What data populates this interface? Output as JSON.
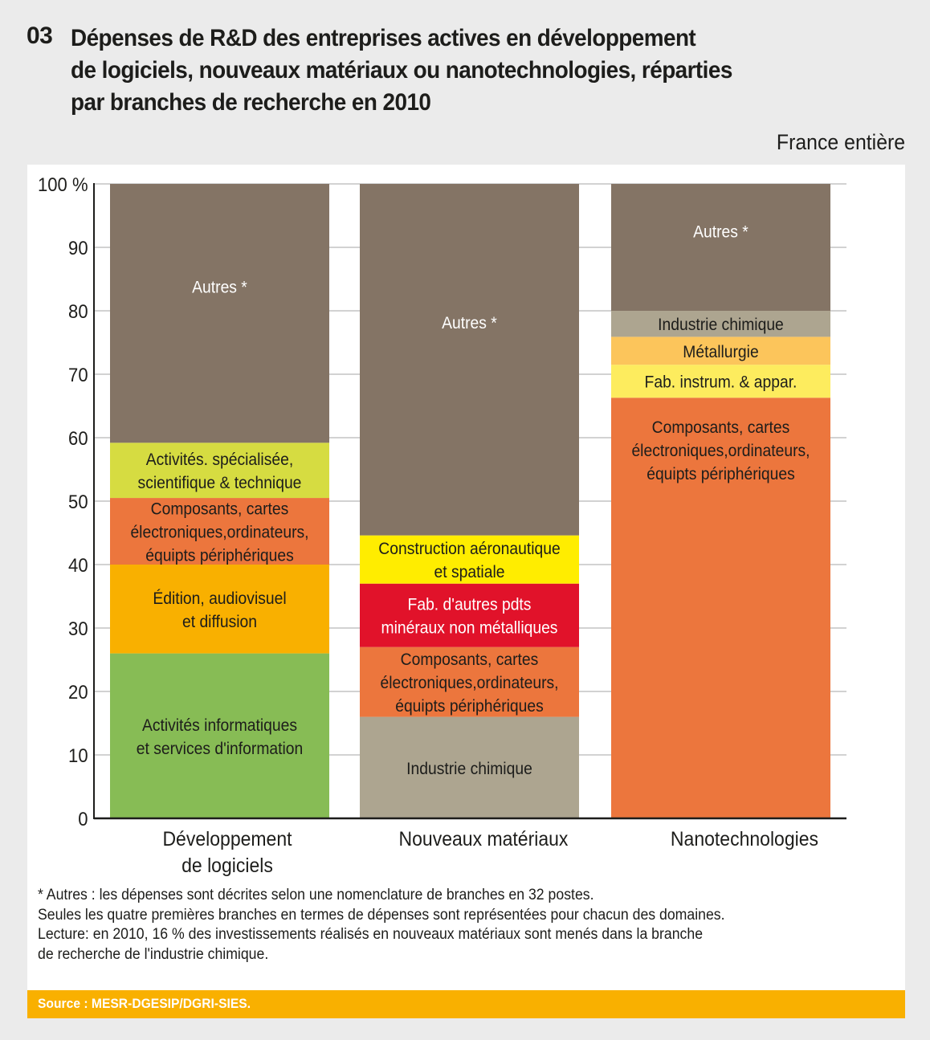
{
  "header": {
    "number": "03",
    "title_lines": [
      "Dépenses de R&D des entreprises actives en développement",
      "de logiciels, nouveaux matériaux ou nanotechnologies, réparties",
      "par branches de recherche en 2010"
    ],
    "scope": "France entière"
  },
  "chart_data": {
    "type": "bar",
    "stacked": true,
    "title": "Dépenses de R&D des entreprises actives en développement de logiciels, nouveaux matériaux ou nanotechnologies, réparties par branches de recherche en 2010",
    "ylabel": "%",
    "ylim": [
      0,
      100
    ],
    "y_ticks": [
      "0",
      "10",
      "20",
      "30",
      "40",
      "50",
      "60",
      "70",
      "80",
      "90",
      "100 %"
    ],
    "grid": true,
    "categories": [
      {
        "name": "Développement de logiciels",
        "label_lines": [
          "Développement",
          "de logiciels"
        ]
      },
      {
        "name": "Nouveaux matériaux",
        "label_lines": [
          "Nouveaux matériaux"
        ]
      },
      {
        "name": "Nanotechnologies",
        "label_lines": [
          "Nanotechnologies"
        ]
      }
    ],
    "stacks": [
      {
        "category": "Développement de logiciels",
        "segments": [
          {
            "name": "Activités informatiques et services d'information",
            "label_lines": [
              "Activités informatiques",
              "et services d'information"
            ],
            "value": 26,
            "color": "#87bc55",
            "text_color": "#1d1d1b"
          },
          {
            "name": "Édition, audiovisuel et diffusion",
            "label_lines": [
              "Édition, audiovisuel",
              "et diffusion"
            ],
            "value": 14,
            "color": "#f9b000",
            "text_color": "#1d1d1b"
          },
          {
            "name": "Composants, cartes électroniques,ordinateurs, équipts périphériques",
            "label_lines": [
              "Composants, cartes",
              "électroniques,ordinateurs,",
              "équipts périphériques"
            ],
            "value": 10.5,
            "color": "#ec763d",
            "text_color": "#1d1d1b"
          },
          {
            "name": "Activités. spécialisée, scientifique & technique",
            "label_lines": [
              "Activités. spécialisée,",
              "scientifique & technique"
            ],
            "value": 8.7,
            "color": "#d6dc41",
            "text_color": "#1d1d1b"
          },
          {
            "name": "Autres *",
            "label_lines": [
              "Autres *"
            ],
            "value": 40.8,
            "color": "#847465",
            "text_color": "#ffffff"
          }
        ]
      },
      {
        "category": "Nouveaux matériaux",
        "segments": [
          {
            "name": "Industrie chimique",
            "label_lines": [
              "Industrie chimique"
            ],
            "value": 16,
            "color": "#ada590",
            "text_color": "#1d1d1b"
          },
          {
            "name": "Composants, cartes électroniques,ordinateurs, équipts périphériques",
            "label_lines": [
              "Composants, cartes",
              "électroniques,ordinateurs,",
              "équipts périphériques"
            ],
            "value": 11,
            "color": "#ec763d",
            "text_color": "#1d1d1b"
          },
          {
            "name": "Fab. d'autres pdts minéraux non métalliques",
            "label_lines": [
              "Fab. d'autres pdts",
              "minéraux non métalliques"
            ],
            "value": 10,
            "color": "#e1122a",
            "text_color": "#ffffff"
          },
          {
            "name": "Construction aéronautique et spatiale",
            "label_lines": [
              "Construction aéronautique",
              "et spatiale"
            ],
            "value": 7.6,
            "color": "#ffed00",
            "text_color": "#1d1d1b"
          },
          {
            "name": "Autres *",
            "label_lines": [
              "Autres *"
            ],
            "value": 55.4,
            "color": "#847465",
            "text_color": "#ffffff"
          }
        ]
      },
      {
        "category": "Nanotechnologies",
        "segments": [
          {
            "name": "Composants, cartes électroniques,ordinateurs, équipts périphériques",
            "label_lines": [
              "Composants, cartes",
              "électroniques,ordinateurs,",
              "équipts périphériques"
            ],
            "value": 66.3,
            "color": "#ec763d",
            "text_color": "#1d1d1b",
            "label_align": "top"
          },
          {
            "name": "Fab. instrum. & appar.",
            "label_lines": [
              "Fab. instrum. & appar."
            ],
            "value": 5.2,
            "color": "#fdec5e",
            "text_color": "#1d1d1b"
          },
          {
            "name": "Métallurgie",
            "label_lines": [
              "Métallurgie"
            ],
            "value": 4.4,
            "color": "#fcc55b",
            "text_color": "#1d1d1b"
          },
          {
            "name": "Industrie chimique",
            "label_lines": [
              "Industrie chimique"
            ],
            "value": 4.1,
            "color": "#ada590",
            "text_color": "#1d1d1b"
          },
          {
            "name": "Autres *",
            "label_lines": [
              "Autres *"
            ],
            "value": 20,
            "color": "#847465",
            "text_color": "#ffffff"
          }
        ]
      }
    ]
  },
  "notes": [
    "* Autres : les dépenses sont décrites selon une nomenclature de branches en 32 postes.",
    "Seules les quatre premières branches en termes de dépenses sont représentées pour chacun des domaines.",
    "Lecture: en 2010, 16 % des investissements réalisés en nouveaux matériaux sont menés dans la branche",
    "de recherche de l'industrie chimique."
  ],
  "source": "Source : MESR-DGESIP/DGRI-SIES.",
  "colors": {
    "background": "#ebebeb",
    "panel": "#ffffff",
    "source_bar": "#f9b000",
    "grid": "#b8b8b8",
    "axis": "#1d1d1b"
  }
}
